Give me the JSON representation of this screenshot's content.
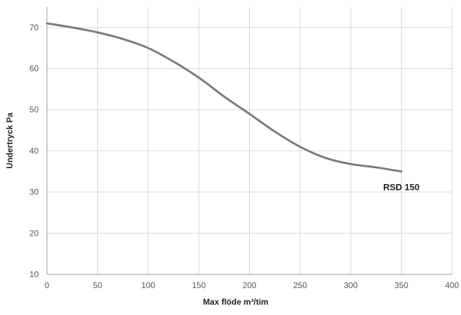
{
  "chart_data": {
    "type": "line",
    "title": "",
    "xlabel": "Max flöde m³/tim",
    "ylabel": "Undertryck Pa",
    "xlim": [
      0,
      400
    ],
    "ylim": [
      10,
      75
    ],
    "xticks": [
      0,
      50,
      100,
      150,
      200,
      250,
      300,
      350,
      400
    ],
    "yticks": [
      10,
      20,
      30,
      40,
      50,
      60,
      70
    ],
    "grid": true,
    "legend": "none",
    "series": [
      {
        "name": "RSD 150",
        "color": "#7a7a7a",
        "x": [
          0,
          25,
          50,
          75,
          100,
          125,
          150,
          175,
          200,
          225,
          250,
          275,
          300,
          325,
          350
        ],
        "y": [
          71,
          70,
          68.8,
          67.2,
          65,
          61.7,
          57.8,
          53.2,
          49,
          44.7,
          41,
          38.3,
          36.8,
          36,
          35
        ]
      }
    ]
  }
}
